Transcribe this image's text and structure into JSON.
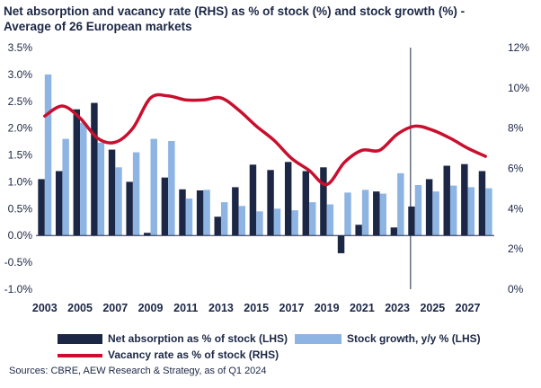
{
  "title_line1": "Net absorption and vacancy rate (RHS) as % of stock (%) and stock growth (%) -",
  "title_line2": "Average of 26 European markets",
  "source": "Sources: CBRE, AEW Research & Strategy, as of Q1 2024",
  "colors": {
    "absorption": "#1c2745",
    "growth": "#8db4e2",
    "vacancy": "#c8102e",
    "text": "#1c2745"
  },
  "chart_data": {
    "type": "bar",
    "x": [
      2003,
      2004,
      2005,
      2006,
      2007,
      2008,
      2009,
      2010,
      2011,
      2012,
      2013,
      2014,
      2015,
      2016,
      2017,
      2018,
      2019,
      2020,
      2021,
      2022,
      2023,
      2024,
      2025,
      2026,
      2027,
      2028
    ],
    "xtick_labels": [
      "2003",
      "2005",
      "2007",
      "2009",
      "2011",
      "2013",
      "2015",
      "2017",
      "2019",
      "2021",
      "2023",
      "2025",
      "2027"
    ],
    "series": [
      {
        "name": "Net absorption as % of stock (LHS)",
        "axis": "left",
        "type": "bar",
        "values": [
          1.05,
          1.2,
          2.35,
          2.47,
          1.6,
          1.0,
          0.05,
          1.08,
          0.86,
          0.84,
          0.35,
          0.9,
          1.32,
          1.22,
          1.37,
          1.2,
          1.27,
          -0.33,
          0.2,
          0.82,
          0.15,
          0.54,
          1.05,
          1.3,
          1.33,
          1.2
        ]
      },
      {
        "name": "Stock growth, y/y % (LHS)",
        "axis": "left",
        "type": "bar",
        "values": [
          3.0,
          1.8,
          2.1,
          1.73,
          1.27,
          1.55,
          1.8,
          1.76,
          0.69,
          0.85,
          0.62,
          0.55,
          0.45,
          0.5,
          0.47,
          0.62,
          0.58,
          0.8,
          0.85,
          0.78,
          1.16,
          0.94,
          0.82,
          0.93,
          0.9,
          0.88
        ]
      },
      {
        "name": "Vacancy rate as % of stock (RHS)",
        "axis": "right",
        "type": "line",
        "values": [
          8.6,
          9.1,
          8.5,
          7.5,
          7.3,
          8.0,
          9.5,
          9.6,
          9.4,
          9.4,
          9.5,
          8.9,
          8.1,
          7.4,
          6.5,
          5.9,
          5.2,
          6.3,
          6.9,
          6.9,
          7.7,
          8.1,
          7.9,
          7.5,
          7.0,
          6.6
        ]
      }
    ],
    "left_ticks": [
      "3.5%",
      "3.0%",
      "2.5%",
      "2.0%",
      "1.5%",
      "1.0%",
      "0.5%",
      "0.0%",
      "-0.5%",
      "-1.0%"
    ],
    "right_ticks": [
      "12%",
      "10%",
      "8%",
      "6%",
      "4%",
      "2%",
      "0%"
    ],
    "ylim_left": [
      -1.0,
      3.5
    ],
    "ylim_right": [
      0,
      12
    ],
    "forecast_divider_year": 2023.75,
    "grid": false,
    "legend_position": "bottom"
  }
}
